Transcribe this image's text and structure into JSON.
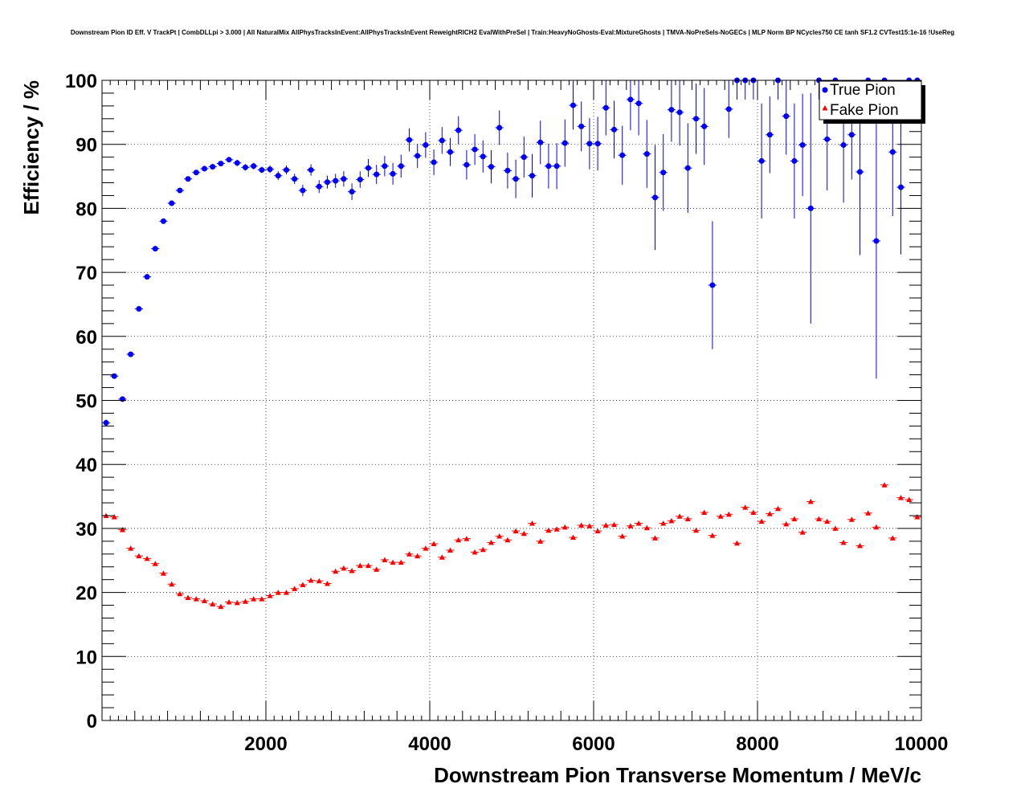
{
  "chart_data": {
    "type": "scatter",
    "title": "Downstream Pion ID Eff. V TrackPt | CombDLLpi > 3.000 | All NaturalMix AllPhysTracksInEvent:AllPhysTracksInEvent ReweightRICH2 EvalWithPreSel | Train:HeavyNoGhosts-Eval:MixtureGhosts | TMVA-NoPreSels-NoGECs | MLP Norm BP NCycles750 CE tanh SF1.2 CVTest15:1e-16 !UseReg",
    "xlabel": "Downstream Pion Transverse Momentum / MeV/c",
    "ylabel": "Efficiency / %",
    "xlim": [
      0,
      10000
    ],
    "ylim": [
      0,
      100
    ],
    "x_ticks": [
      2000,
      4000,
      6000,
      8000,
      10000
    ],
    "y_ticks": [
      0,
      10,
      20,
      30,
      40,
      50,
      60,
      70,
      80,
      90,
      100
    ],
    "grid": true,
    "legend": {
      "placement": "top-right"
    },
    "bin_width": 100,
    "series": [
      {
        "name": "True Pion",
        "marker": "circle",
        "color": "#0000ff",
        "x": [
          50,
          150,
          250,
          350,
          450,
          550,
          650,
          750,
          850,
          950,
          1050,
          1150,
          1250,
          1350,
          1450,
          1550,
          1650,
          1750,
          1850,
          1950,
          2050,
          2150,
          2250,
          2350,
          2450,
          2550,
          2650,
          2750,
          2850,
          2950,
          3050,
          3150,
          3250,
          3350,
          3450,
          3550,
          3650,
          3750,
          3850,
          3950,
          4050,
          4150,
          4250,
          4350,
          4450,
          4550,
          4650,
          4750,
          4850,
          4950,
          5050,
          5150,
          5250,
          5350,
          5450,
          5550,
          5650,
          5750,
          5850,
          5950,
          6050,
          6150,
          6250,
          6350,
          6450,
          6550,
          6650,
          6750,
          6850,
          6950,
          7050,
          7150,
          7250,
          7350,
          7450,
          7550,
          7650,
          7750,
          7850,
          7950,
          8050,
          8150,
          8250,
          8350,
          8450,
          8550,
          8650,
          8750,
          8850,
          8950,
          9050,
          9150,
          9250,
          9350,
          9450,
          9550,
          9650,
          9750,
          9850,
          9950
        ],
        "y": [
          46.5,
          53.8,
          50.2,
          57.2,
          64.3,
          69.3,
          73.7,
          78.0,
          80.8,
          82.8,
          84.6,
          85.6,
          86.2,
          86.5,
          87.0,
          87.6,
          87.1,
          86.4,
          86.6,
          86.0,
          86.1,
          85.1,
          86.0,
          84.6,
          82.8,
          86.0,
          83.4,
          84.1,
          84.3,
          84.6,
          82.6,
          84.5,
          86.3,
          85.3,
          86.6,
          85.4,
          86.6,
          90.7,
          88.2,
          89.9,
          87.2,
          90.6,
          88.8,
          92.2,
          86.8,
          89.2,
          88.1,
          86.5,
          92.6,
          85.9,
          84.6,
          88.0,
          85.1,
          90.3,
          86.6,
          86.6,
          90.2,
          96.1,
          92.8,
          90.1,
          90.1,
          95.7,
          92.3,
          88.3,
          97.0,
          96.4,
          88.5,
          81.7,
          85.6,
          95.4,
          95.0,
          86.3,
          94.0,
          92.8,
          68.0,
          null,
          95.5,
          100,
          100,
          100,
          87.4,
          91.5,
          100,
          94.4,
          87.4,
          89.9,
          80.0,
          100,
          90.8,
          100,
          89.9,
          91.5,
          85.7,
          100,
          74.9,
          100,
          88.8,
          83.3,
          100,
          100
        ],
        "err": [
          0.5,
          0.4,
          0.4,
          0.4,
          0.4,
          0.4,
          0.4,
          0.4,
          0.4,
          0.4,
          0.4,
          0.4,
          0.4,
          0.4,
          0.4,
          0.4,
          0.5,
          0.5,
          0.5,
          0.5,
          0.6,
          0.7,
          0.7,
          0.8,
          0.9,
          0.9,
          1.0,
          1.0,
          1.1,
          1.2,
          1.3,
          1.3,
          1.4,
          1.5,
          1.6,
          1.7,
          1.8,
          1.8,
          1.9,
          2.0,
          2.0,
          2.1,
          2.2,
          2.2,
          2.3,
          2.4,
          2.5,
          2.6,
          2.7,
          2.8,
          3.0,
          3.2,
          3.4,
          3.4,
          3.5,
          3.6,
          3.7,
          3.8,
          3.9,
          4.0,
          4.2,
          4.3,
          4.5,
          4.6,
          4.8,
          5.0,
          5.3,
          8.2,
          6.0,
          5.0,
          5.2,
          7.0,
          5.5,
          6.0,
          10.0,
          0,
          4.5,
          3.0,
          3.0,
          3.0,
          9.0,
          6.0,
          3.0,
          6.0,
          9.0,
          8.0,
          18.0,
          3.0,
          8.0,
          3.0,
          9.0,
          7.0,
          13.0,
          3.0,
          21.5,
          3.0,
          10.0,
          10.5,
          3.0,
          3.0
        ]
      },
      {
        "name": "Fake Pion",
        "marker": "triangle",
        "color": "#ff0000",
        "x": [
          50,
          150,
          250,
          350,
          450,
          550,
          650,
          750,
          850,
          950,
          1050,
          1150,
          1250,
          1350,
          1450,
          1550,
          1650,
          1750,
          1850,
          1950,
          2050,
          2150,
          2250,
          2350,
          2450,
          2550,
          2650,
          2750,
          2850,
          2950,
          3050,
          3150,
          3250,
          3350,
          3450,
          3550,
          3650,
          3750,
          3850,
          3950,
          4050,
          4150,
          4250,
          4350,
          4450,
          4550,
          4650,
          4750,
          4850,
          4950,
          5050,
          5150,
          5250,
          5350,
          5450,
          5550,
          5650,
          5750,
          5850,
          5950,
          6050,
          6150,
          6250,
          6350,
          6450,
          6550,
          6650,
          6750,
          6850,
          6950,
          7050,
          7150,
          7250,
          7350,
          7450,
          7550,
          7650,
          7750,
          7850,
          7950,
          8050,
          8150,
          8250,
          8350,
          8450,
          8550,
          8650,
          8750,
          8850,
          8950,
          9050,
          9150,
          9250,
          9350,
          9450,
          9550,
          9650,
          9750,
          9850,
          9950
        ],
        "y": [
          32.0,
          31.8,
          29.8,
          26.9,
          25.7,
          25.3,
          24.5,
          23.0,
          21.3,
          19.8,
          19.2,
          19.0,
          18.7,
          18.2,
          17.8,
          18.5,
          18.4,
          18.6,
          19.0,
          19.0,
          19.5,
          20.0,
          20.0,
          20.6,
          21.2,
          21.9,
          21.8,
          21.4,
          23.3,
          23.8,
          23.4,
          24.2,
          24.2,
          23.6,
          25.1,
          24.7,
          24.7,
          26.0,
          25.7,
          26.9,
          27.6,
          25.5,
          26.6,
          28.2,
          28.4,
          26.3,
          26.7,
          27.8,
          28.8,
          28.2,
          29.6,
          29.2,
          30.8,
          28.0,
          29.7,
          29.9,
          30.2,
          28.6,
          30.5,
          30.4,
          29.6,
          30.5,
          30.6,
          28.8,
          30.4,
          30.8,
          30.1,
          28.5,
          30.8,
          31.2,
          31.9,
          31.5,
          29.7,
          32.5,
          28.9,
          31.9,
          32.2,
          27.7,
          33.3,
          32.5,
          31.1,
          32.3,
          33.1,
          30.7,
          31.5,
          29.4,
          34.2,
          31.5,
          31.1,
          30.0,
          27.8,
          31.4,
          27.3,
          32.4,
          30.2,
          36.8,
          28.5,
          34.8,
          34.5,
          31.8
        ]
      }
    ]
  }
}
